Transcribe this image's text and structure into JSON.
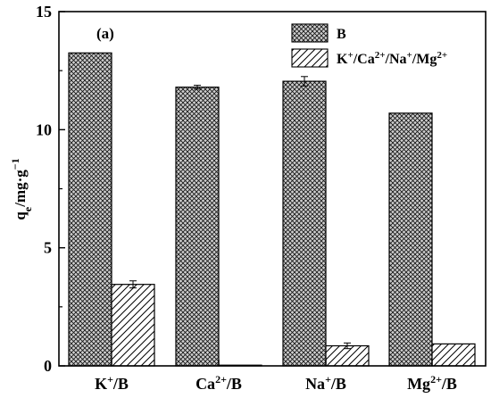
{
  "chart_data": {
    "type": "bar",
    "panel_label": "(a)",
    "ylabel_html": "q<tspan baseline-shift=\"sub\" font-size=\"12\">e</tspan>/mg·g<tspan baseline-shift=\"super\" font-size=\"12\">−1</tspan>",
    "ylim": [
      0,
      15
    ],
    "yticks": [
      "0",
      "5",
      "10",
      "15"
    ],
    "ytick_values": [
      0,
      5,
      10,
      15
    ],
    "categories": [
      {
        "base": "K",
        "sup": "+",
        "tail": "/B"
      },
      {
        "base": "Ca",
        "sup": "2+",
        "tail": "/B"
      },
      {
        "base": "Na",
        "sup": "+",
        "tail": "/B"
      },
      {
        "base": "Mg",
        "sup": "2+",
        "tail": "/B"
      }
    ],
    "series": [
      {
        "name": "B",
        "pattern": "crosshatch",
        "values": [
          13.25,
          11.8,
          12.05,
          10.7
        ],
        "errors": [
          0.0,
          0.08,
          0.2,
          0.0
        ]
      },
      {
        "name": "K+/Ca2+/Na+/Mg2+",
        "pattern": "diagonal",
        "values": [
          3.45,
          0.03,
          0.85,
          0.93
        ],
        "errors": [
          0.15,
          0.0,
          0.12,
          0.0
        ]
      }
    ],
    "legend": {
      "placement": "top-right",
      "entries": [
        {
          "text": "B"
        },
        {
          "text": "K<tspan baseline-shift=\"super\" font-size=\"11\">+</tspan>/Ca<tspan baseline-shift=\"super\" font-size=\"11\">2+</tspan>/Na<tspan baseline-shift=\"super\" font-size=\"11\">+</tspan>/Mg<tspan baseline-shift=\"super\" font-size=\"11\">2+</tspan>"
        }
      ]
    },
    "colors": {
      "bar_fill": "#d8d8d8",
      "stroke": "#000000"
    }
  }
}
